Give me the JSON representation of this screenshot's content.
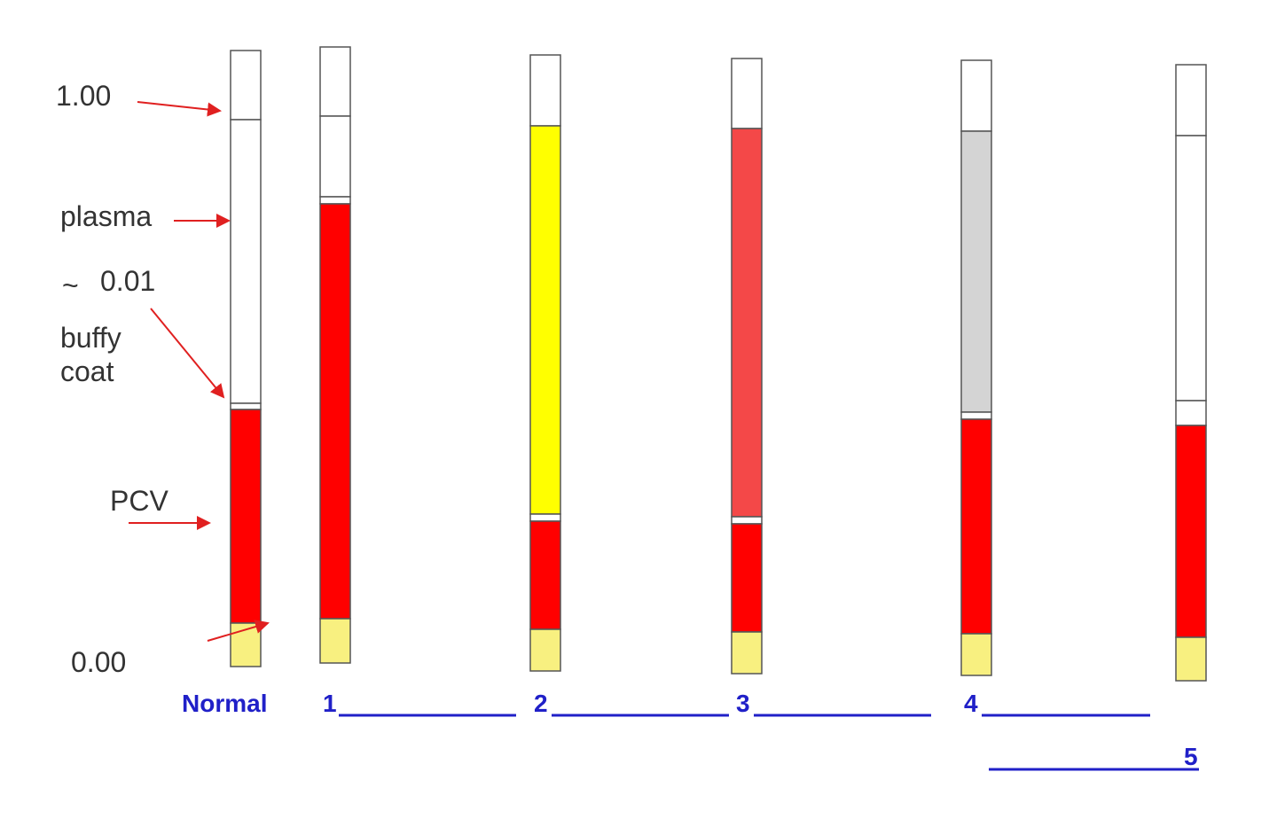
{
  "labels": {
    "top": "1.00",
    "plasma": "plasma",
    "tilde": "~",
    "buffy_value": "0.01",
    "buffy_line1": "buffy",
    "buffy_line2": "coat",
    "pcv": "PCV",
    "bottom": "0.00"
  },
  "tubes": [
    {
      "label": "Normal"
    },
    {
      "label": "1"
    },
    {
      "label": "2"
    },
    {
      "label": "3"
    },
    {
      "label": "4"
    },
    {
      "label": "5"
    }
  ]
}
